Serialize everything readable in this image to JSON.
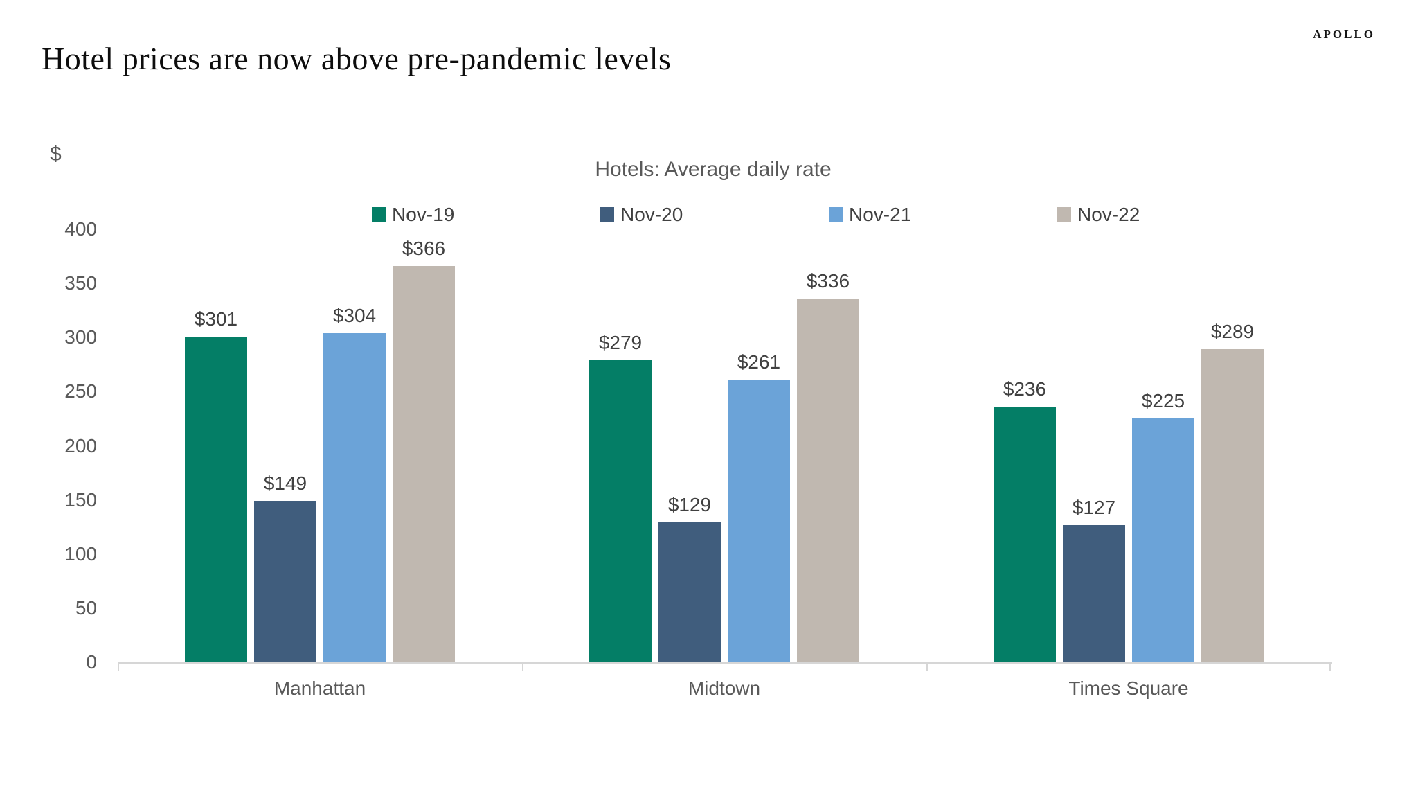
{
  "page": {
    "logo": "APOLLO",
    "title": "Hotel prices are now above pre-pandemic levels"
  },
  "chart_data": {
    "type": "bar",
    "title": "Hotels: Average daily rate",
    "y_axis_unit": "$",
    "categories": [
      "Manhattan",
      "Midtown",
      "Times Square"
    ],
    "series": [
      {
        "name": "Nov-19",
        "color": "#047e66",
        "values": [
          301,
          279,
          236
        ],
        "data_labels": [
          "$301",
          "$279",
          "$236"
        ]
      },
      {
        "name": "Nov-20",
        "color": "#405d7d",
        "values": [
          149,
          129,
          127
        ],
        "data_labels": [
          "$149",
          "$129",
          "$127"
        ]
      },
      {
        "name": "Nov-21",
        "color": "#6ba3d8",
        "values": [
          304,
          261,
          225
        ],
        "data_labels": [
          "$304",
          "$261",
          "$225"
        ]
      },
      {
        "name": "Nov-22",
        "color": "#c0b8b0",
        "values": [
          366,
          336,
          289
        ],
        "data_labels": [
          "$366",
          "$336",
          "$289"
        ]
      }
    ],
    "ylim": [
      0,
      400
    ],
    "y_ticks": [
      0,
      50,
      100,
      150,
      200,
      250,
      300,
      350,
      400
    ],
    "grid": false,
    "legend_position": "top",
    "axis_color": "#d6d6d6",
    "label_color": "#404040",
    "tick_label_color": "#595959"
  }
}
